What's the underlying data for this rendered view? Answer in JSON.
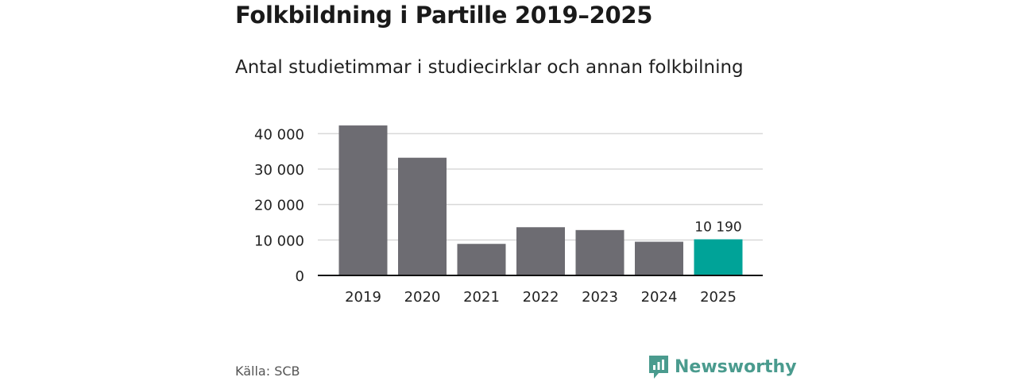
{
  "header": {
    "title": "Folkbildning i Partille 2019–2025",
    "subtitle": "Antal studietimmar i studiecirklar och annan folkbilning"
  },
  "footer": {
    "source": "Källa: SCB",
    "brand": "Newsworthy",
    "brand_icon": "bar-chart-speech-bubble-icon",
    "brand_color": "#4a9b8e"
  },
  "chart_data": {
    "type": "bar",
    "categories": [
      "2019",
      "2020",
      "2021",
      "2022",
      "2023",
      "2024",
      "2025"
    ],
    "values": [
      42300,
      33200,
      8900,
      13600,
      12800,
      9500,
      10190
    ],
    "ylim": [
      0,
      45000
    ],
    "yticks": [
      0,
      10000,
      20000,
      30000,
      40000
    ],
    "ytick_labels": [
      "0",
      "10 000",
      "20 000",
      "30 000",
      "40 000"
    ],
    "grid": true,
    "colors": {
      "bar": "#6d6c72",
      "highlight": "#00a398"
    },
    "highlight_index": 6,
    "data_labels": [
      {
        "index": 6,
        "text": "10 190"
      }
    ]
  }
}
